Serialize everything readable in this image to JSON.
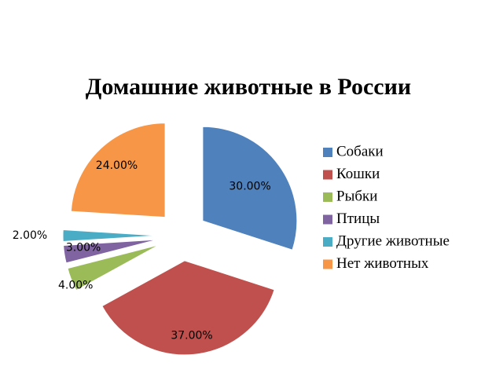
{
  "chart_data": {
    "type": "pie",
    "title": "Домашние животные в России",
    "categories": [
      "Собаки",
      "Кошки",
      "Рыбки",
      "Птицы",
      "Другие животные",
      "Нет животных"
    ],
    "values": [
      30,
      37,
      4,
      3,
      2,
      24
    ],
    "value_labels": [
      "30.00%",
      "37.00%",
      "4.00%",
      "3.00%",
      "2.00%",
      "24.00%"
    ],
    "colors": [
      "#4F81BD",
      "#C0504D",
      "#9BBB59",
      "#8064A2",
      "#4BACC6",
      "#F79646"
    ],
    "exploded": true,
    "legend_position": "right"
  }
}
